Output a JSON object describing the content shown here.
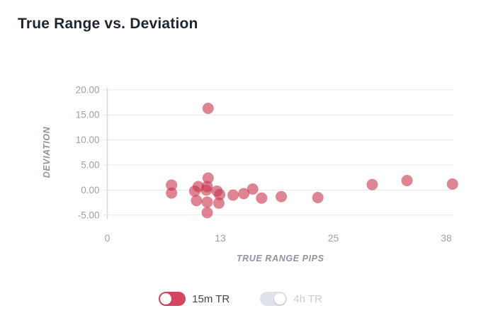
{
  "title": "True Range vs. Deviation",
  "colors": {
    "title": "#1d2633",
    "tick_labels": "#9aa2ab",
    "axis_titles": "#8d959e",
    "gridline": "#e7e8ea",
    "axis_line": "#d5d8db",
    "point_fill": "#c93950",
    "legend_on": "#d6455f",
    "legend_off": "#dee3e9"
  },
  "chart_data": {
    "type": "scatter",
    "title": "True Range vs. Deviation",
    "xlabel": "TRUE RANGE PIPS",
    "ylabel": "DEVIATION",
    "x_tick_labels": [
      "0",
      "13",
      "25",
      "38"
    ],
    "y_tick_values": [
      20,
      15,
      10,
      5,
      0,
      -5
    ],
    "y_tick_labels": [
      "20.00",
      "15.00",
      "10.00",
      "5.00",
      "0.00",
      "-5.00"
    ],
    "xlim": [
      0,
      38.8
    ],
    "ylim": [
      -5,
      20
    ],
    "grid": "horizontal-only",
    "legend_position": "bottom",
    "series": [
      {
        "name": "15m TR",
        "enabled": true,
        "color": "#d6455f",
        "point_fill": "#c93950",
        "point_opacity": 0.62,
        "points": [
          [
            7.2,
            1.0
          ],
          [
            7.2,
            -0.6
          ],
          [
            9.8,
            -0.2
          ],
          [
            10.0,
            -2.1
          ],
          [
            10.2,
            0.7
          ],
          [
            11.1,
            0.0
          ],
          [
            11.2,
            0.7
          ],
          [
            11.2,
            -2.4
          ],
          [
            11.2,
            -4.5
          ],
          [
            11.3,
            16.3
          ],
          [
            11.3,
            2.4
          ],
          [
            12.3,
            -0.2
          ],
          [
            12.5,
            -2.6
          ],
          [
            12.6,
            -0.9
          ],
          [
            14.1,
            -1.0
          ],
          [
            15.3,
            -0.7
          ],
          [
            16.3,
            0.2
          ],
          [
            17.3,
            -1.6
          ],
          [
            19.5,
            -1.3
          ],
          [
            23.6,
            -1.5
          ],
          [
            29.7,
            1.1
          ],
          [
            33.6,
            1.9
          ],
          [
            38.7,
            1.2
          ]
        ]
      },
      {
        "name": "4h TR",
        "enabled": false,
        "color": "#dee3e9",
        "points": []
      }
    ]
  },
  "legend": {
    "items": [
      {
        "label": "15m TR",
        "state": "on",
        "knob_side": "left"
      },
      {
        "label": "4h TR",
        "state": "off",
        "knob_side": "right"
      }
    ]
  }
}
